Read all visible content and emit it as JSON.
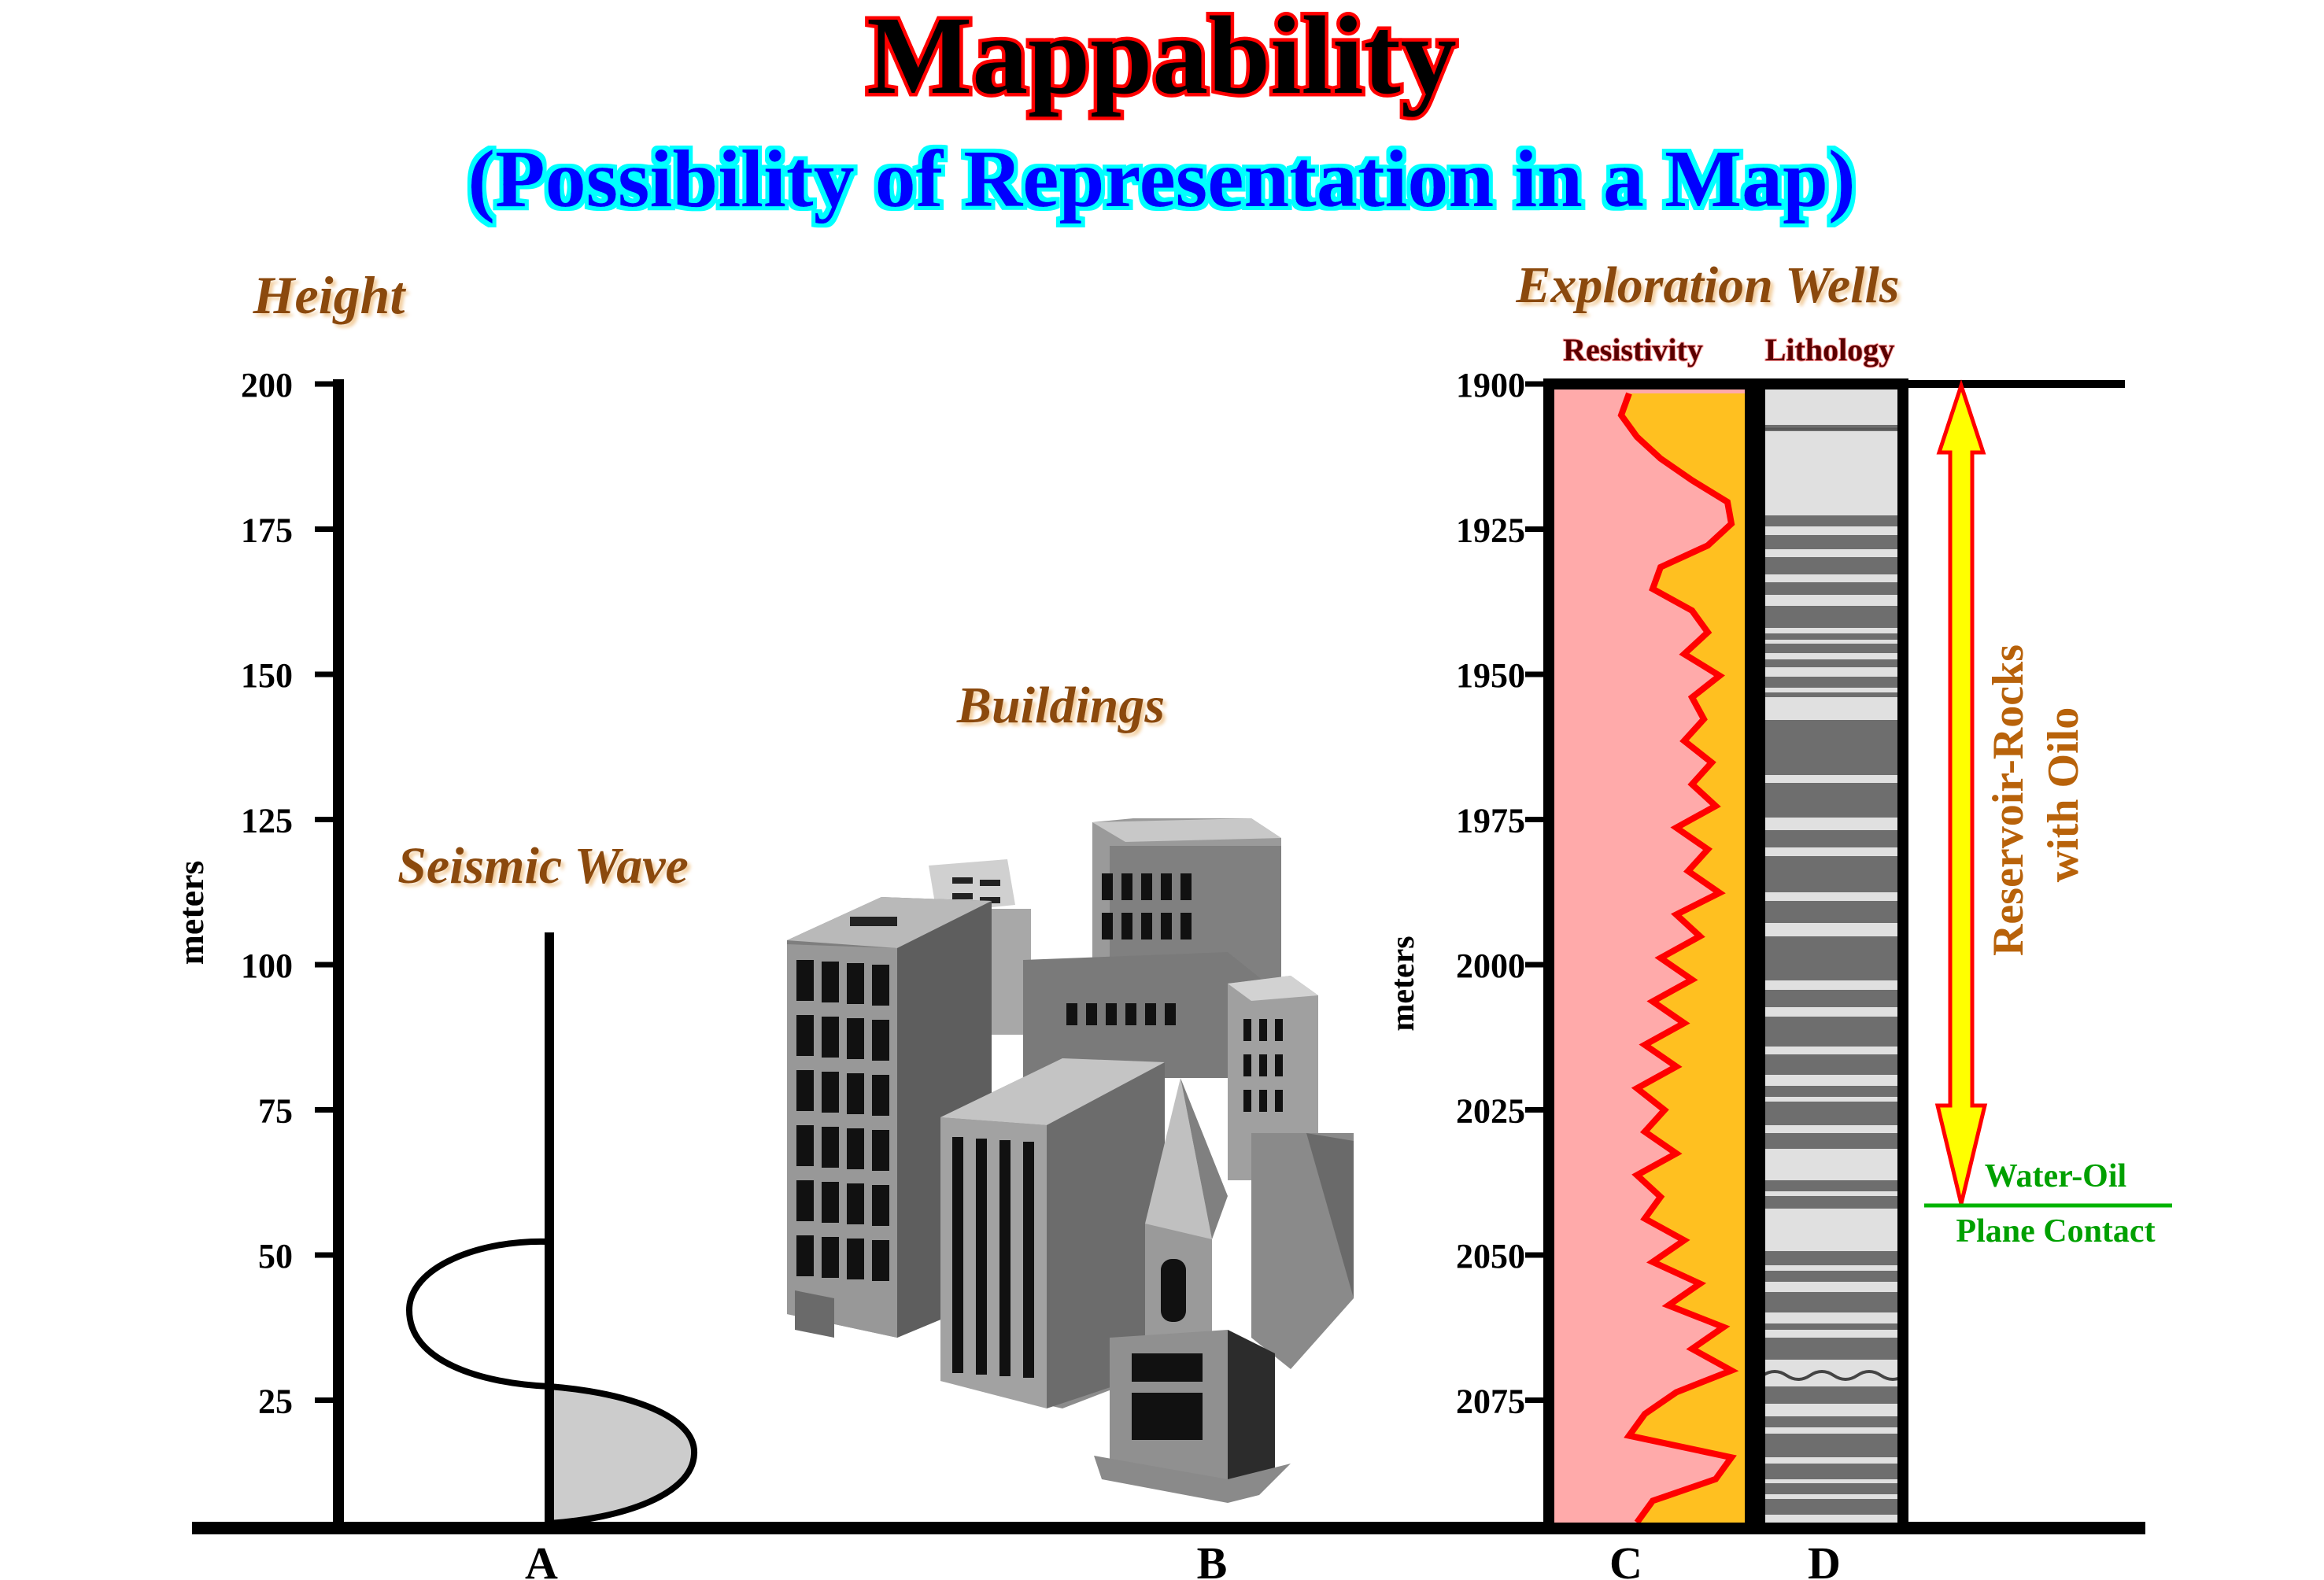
{
  "title": "Mappability",
  "subtitle": "(Possibility of Representation in a Map)",
  "left_panel": {
    "heading": "Height",
    "axis_label": "meters",
    "ticks": [
      "200",
      "175",
      "150",
      "125",
      "100",
      "75",
      "50",
      "25"
    ],
    "seismic_label": "Seismic Wave",
    "buildings_label": "Buildings",
    "point_a": "A",
    "point_b": "B"
  },
  "right_panel": {
    "heading": "Exploration Wells",
    "resistivity_label": "Resistivity",
    "lithology_label": "Lithology",
    "axis_label": "meters",
    "ticks": [
      "1900",
      "1925",
      "1950",
      "1975",
      "2000",
      "2025",
      "2050",
      "2075"
    ],
    "point_c": "C",
    "point_d": "D",
    "reservoir_label_line1": "Reservoir-Rocks",
    "reservoir_label_line2": "with Oilo",
    "contact_label_line1": "Water-Oil",
    "contact_label_line2": "Plane Contact"
  },
  "colors": {
    "title_fill": "#000000",
    "title_outline": "#ff0000",
    "subtitle_fill": "#0000ff",
    "subtitle_glow": "#00ffff",
    "heading_fill": "#8b4a0c",
    "resistivity_bg": "#ffaaaa",
    "resistivity_fill": "#ffc020",
    "curve": "#ff0000",
    "contact": "#00b400",
    "arrow_fill": "#ffff00",
    "arrow_outline": "#ff0000"
  }
}
